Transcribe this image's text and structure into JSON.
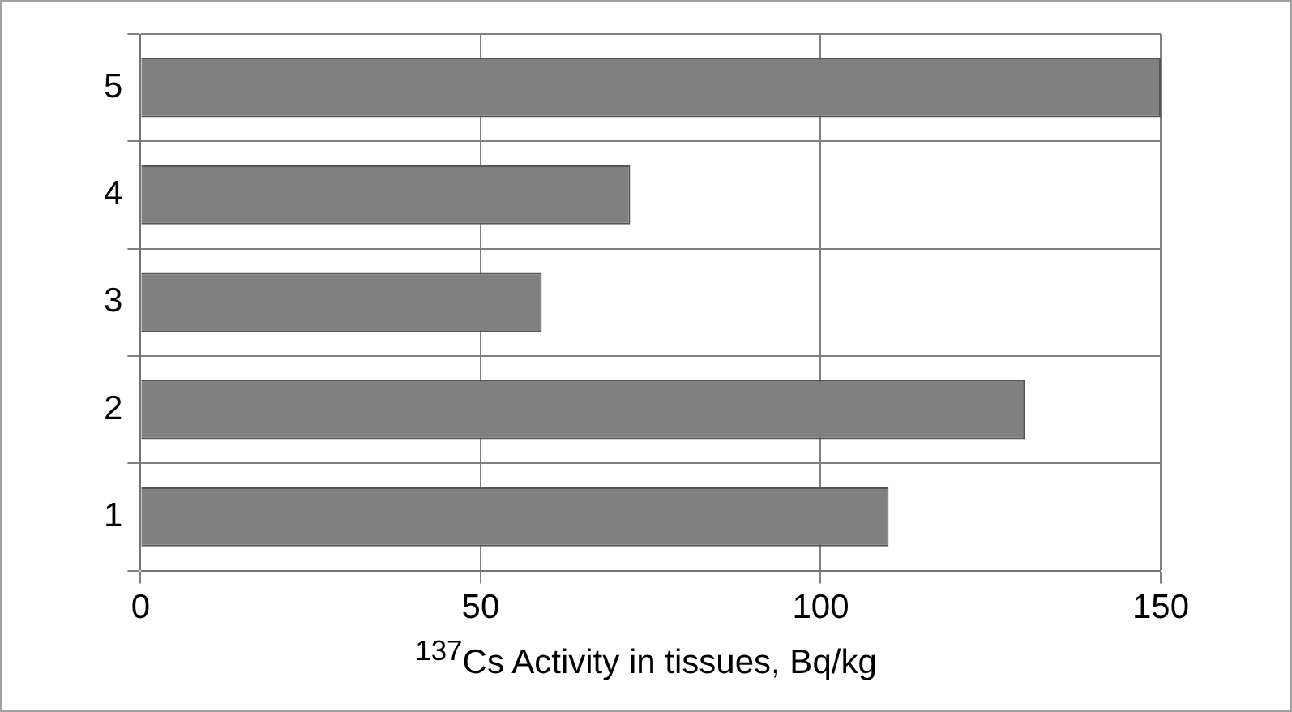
{
  "chart_data": {
    "type": "bar",
    "orientation": "horizontal",
    "categories": [
      "5",
      "4",
      "3",
      "2",
      "1"
    ],
    "values": [
      150,
      72,
      59,
      130,
      110
    ],
    "color": "#808080",
    "xlim": [
      0,
      150
    ],
    "xticks": [
      0,
      50,
      100,
      150
    ],
    "xlabel": "$^{137}$Cs Activity in tissues, Bq/kg",
    "grid": true
  }
}
